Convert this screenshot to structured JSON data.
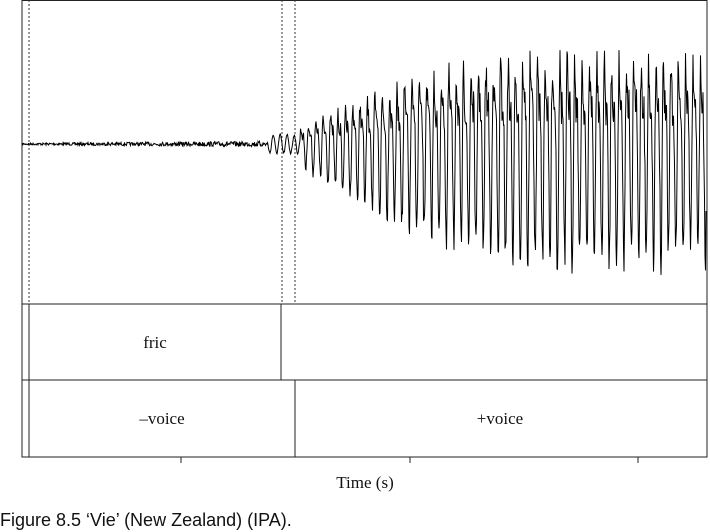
{
  "figure": {
    "tier1": {
      "label": "fric"
    },
    "tier2": {
      "labels": [
        "–voice",
        "+voice"
      ]
    },
    "x_axis_label": "Time (s)",
    "caption": "Figure 8.5  ‘Vie’ (New Zealand) (IPA)."
  }
}
